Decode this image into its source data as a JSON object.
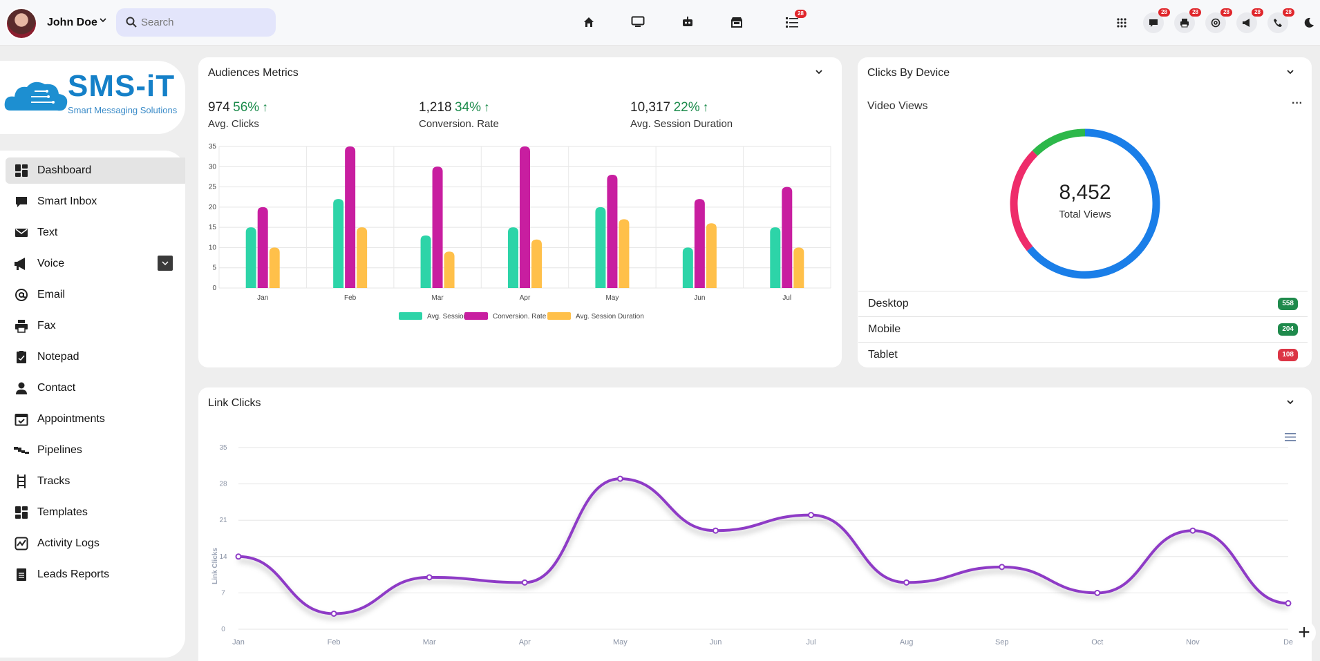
{
  "user": {
    "name": "John Doe"
  },
  "search": {
    "placeholder": "Search"
  },
  "topnav": {
    "badge": "28",
    "icons": [
      "home-icon",
      "monitor-icon",
      "robot-icon",
      "store-icon",
      "list-icon"
    ]
  },
  "right_icons": {
    "badge": "28",
    "icons": [
      "apps-grid-icon",
      "chat-icon",
      "printer-icon",
      "at-icon",
      "megaphone-icon",
      "phone-icon",
      "moon-icon"
    ]
  },
  "logo": {
    "name": "SMS-iT",
    "tagline": "Smart Messaging Solutions"
  },
  "sidebar": {
    "items": [
      {
        "label": "Dashboard",
        "icon": "dashboard-icon"
      },
      {
        "label": "Smart Inbox",
        "icon": "chat-bubble-icon"
      },
      {
        "label": "Text",
        "icon": "envelope-icon"
      },
      {
        "label": "Voice",
        "icon": "megaphone-icon"
      },
      {
        "label": "Email",
        "icon": "at-icon"
      },
      {
        "label": "Fax",
        "icon": "printer-icon"
      },
      {
        "label": "Notepad",
        "icon": "notepad-icon"
      },
      {
        "label": "Contact",
        "icon": "person-icon"
      },
      {
        "label": "Appointments",
        "icon": "calendar-icon"
      },
      {
        "label": "Pipelines",
        "icon": "pipeline-icon"
      },
      {
        "label": "Tracks",
        "icon": "ladder-icon"
      },
      {
        "label": "Templates",
        "icon": "templates-icon"
      },
      {
        "label": "Activity Logs",
        "icon": "activity-icon"
      },
      {
        "label": "Leads Reports",
        "icon": "reports-icon"
      }
    ]
  },
  "audiences": {
    "title": "Audiences Metrics",
    "metrics": [
      {
        "value": "974",
        "change": "56%",
        "label": "Avg. Clicks"
      },
      {
        "value": "1,218",
        "change": "34%",
        "label": "Conversion. Rate"
      },
      {
        "value": "10,317",
        "change": "22%",
        "label": "Avg. Session Duration"
      }
    ]
  },
  "devices": {
    "title": "Clicks By Device",
    "subtitle": "Video Views",
    "total": "8,452",
    "total_label": "Total Views",
    "rows": [
      {
        "label": "Desktop",
        "value": "558",
        "color": "#1f8a4c"
      },
      {
        "label": "Mobile",
        "value": "204",
        "color": "#1f8a4c"
      },
      {
        "label": "Tablet",
        "value": "108",
        "color": "#dc3545"
      }
    ]
  },
  "link_clicks": {
    "title": "Link Clicks"
  },
  "chart_data": [
    {
      "type": "bar",
      "categories": [
        "Jan",
        "Feb",
        "Mar",
        "Apr",
        "May",
        "Jun",
        "Jul"
      ],
      "ylim": [
        0,
        35
      ],
      "yticks": [
        0,
        5,
        10,
        15,
        20,
        25,
        30,
        35
      ],
      "grid": true,
      "legend_position": "bottom",
      "series": [
        {
          "name": "Avg. Session",
          "values": [
            15,
            22,
            13,
            15,
            20,
            10,
            15
          ],
          "color": "#2dd4a8"
        },
        {
          "name": "Conversion. Rate",
          "values": [
            20,
            35,
            30,
            35,
            28,
            22,
            25
          ],
          "color": "#c81ea0"
        },
        {
          "name": "Avg. Session Duration",
          "values": [
            10,
            15,
            9,
            12,
            17,
            16,
            10
          ],
          "color": "#ffc04a"
        }
      ]
    },
    {
      "type": "pie",
      "title": "Video Views",
      "categories": [
        "Desktop",
        "Mobile",
        "Tablet"
      ],
      "values": [
        558,
        204,
        108
      ],
      "colors": [
        "#1a7ee8",
        "#ee2c6a",
        "#2db84a"
      ]
    },
    {
      "type": "line",
      "ylabel": "Link Clicks",
      "categories": [
        "Jan",
        "Feb",
        "Mar",
        "Apr",
        "May",
        "Jun",
        "Jul",
        "Aug",
        "Sep",
        "Oct",
        "Nov",
        "De"
      ],
      "values": [
        14,
        3,
        10,
        9,
        29,
        19,
        22,
        9,
        12,
        7,
        19,
        5
      ],
      "ylim": [
        0,
        35
      ],
      "yticks": [
        0,
        7,
        14,
        21,
        28,
        35
      ],
      "grid": true,
      "color": "#8e3bc6"
    }
  ]
}
